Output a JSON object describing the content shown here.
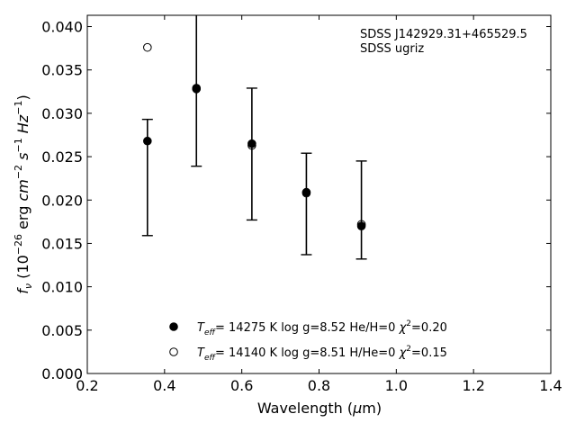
{
  "chart_data": {
    "type": "scatter",
    "title": "",
    "xlabel": "Wavelength (μm)",
    "ylabel": "f_ν (10^-26 erg cm^-2 s^-1 Hz^-1)",
    "xlim": [
      0.2,
      1.4
    ],
    "ylim": [
      0.0,
      0.0413
    ],
    "xticks": [
      "0.2",
      "0.4",
      "0.6",
      "0.8",
      "1.0",
      "1.2",
      "1.4"
    ],
    "xtick_values": [
      0.2,
      0.4,
      0.6,
      0.8,
      1.0,
      1.2,
      1.4
    ],
    "yticks": [
      "0.000",
      "0.005",
      "0.010",
      "0.015",
      "0.020",
      "0.025",
      "0.030",
      "0.035",
      "0.040"
    ],
    "ytick_values": [
      0.0,
      0.005,
      0.01,
      0.015,
      0.02,
      0.025,
      0.03,
      0.035,
      0.04
    ],
    "annotations": [
      "SDSS J142929.31+465529.5",
      "SDSS ugriz"
    ],
    "grid": false,
    "legend_position": "bottom-center",
    "observed": {
      "x": [
        0.3557,
        0.4825,
        0.6261,
        0.7672,
        0.9097
      ],
      "y": [
        0.0268,
        0.0329,
        0.0265,
        0.0209,
        0.017
      ],
      "err_low": [
        0.0159,
        0.0239,
        0.0177,
        0.0137,
        0.0132
      ],
      "err_high": [
        0.0293,
        0.0418,
        0.0329,
        0.0254,
        0.0245
      ]
    },
    "series": [
      {
        "name": "T_eff= 14275 K  log g=8.52  He/H=0  χ²=0.20",
        "marker": "filled-circle",
        "x": [
          0.3557,
          0.4825,
          0.6261,
          0.7672,
          0.9097
        ],
        "y": [
          0.0268,
          0.0329,
          0.0265,
          0.0209,
          0.017
        ]
      },
      {
        "name": "T_eff= 14140 K  log g=8.51  H/He=0  χ²=0.15",
        "marker": "open-circle",
        "x": [
          0.3557,
          0.4825,
          0.6261,
          0.7672,
          0.9097
        ],
        "y": [
          0.0376,
          0.0328,
          0.0263,
          0.0208,
          0.0172
        ]
      }
    ],
    "legend": [
      {
        "teff_value": "= 14275 K",
        "rest": "log g=8.52  He/H=0",
        "chi": "=0.20"
      },
      {
        "teff_value": "= 14140 K",
        "rest": "log g=8.51  H/He=0",
        "chi": "=0.15"
      }
    ]
  }
}
